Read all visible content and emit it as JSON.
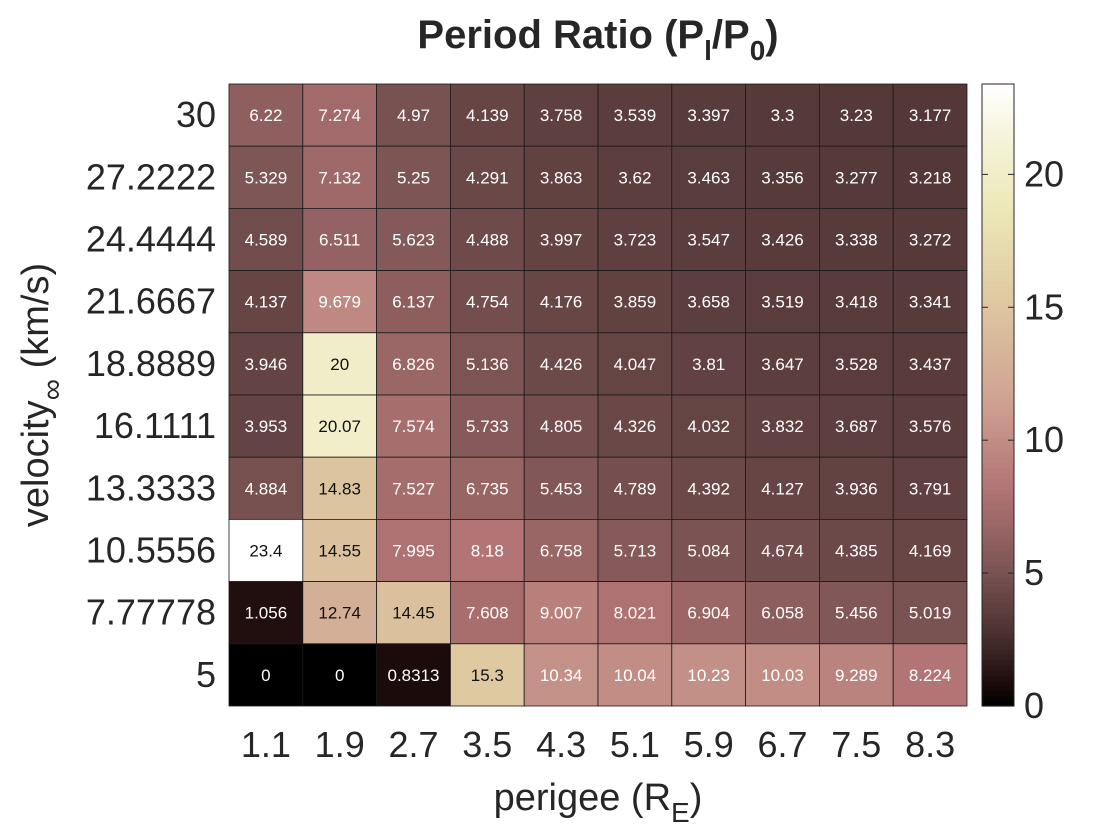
{
  "chart_data": {
    "type": "heatmap",
    "title": {
      "main": "Period Ratio (P",
      "sub1": "l",
      "mid": "/P",
      "sub2": "0",
      "end": ")"
    },
    "xlabel": {
      "main": "perigee (R",
      "sub": "E",
      "end": ")"
    },
    "ylabel": {
      "main": "velocity",
      "sub": "∞",
      "end": " (km/s)"
    },
    "x_ticks": [
      "1.1",
      "1.9",
      "2.7",
      "3.5",
      "4.3",
      "5.1",
      "5.9",
      "6.7",
      "7.5",
      "8.3"
    ],
    "y_ticks_top_to_bottom": [
      "30",
      "27.2222",
      "24.4444",
      "21.6667",
      "18.8889",
      "16.1111",
      "13.3333",
      "10.5556",
      "7.77778",
      "5"
    ],
    "values_top_to_bottom": [
      [
        "6.22",
        "7.274",
        "4.97",
        "4.139",
        "3.758",
        "3.539",
        "3.397",
        "3.3",
        "3.23",
        "3.177"
      ],
      [
        "5.329",
        "7.132",
        "5.25",
        "4.291",
        "3.863",
        "3.62",
        "3.463",
        "3.356",
        "3.277",
        "3.218"
      ],
      [
        "4.589",
        "6.511",
        "5.623",
        "4.488",
        "3.997",
        "3.723",
        "3.547",
        "3.426",
        "3.338",
        "3.272"
      ],
      [
        "4.137",
        "9.679",
        "6.137",
        "4.754",
        "4.176",
        "3.859",
        "3.658",
        "3.519",
        "3.418",
        "3.341"
      ],
      [
        "3.946",
        "20",
        "6.826",
        "5.136",
        "4.426",
        "4.047",
        "3.81",
        "3.647",
        "3.528",
        "3.437"
      ],
      [
        "3.953",
        "20.07",
        "7.574",
        "5.733",
        "4.805",
        "4.326",
        "4.032",
        "3.832",
        "3.687",
        "3.576"
      ],
      [
        "4.884",
        "14.83",
        "7.527",
        "6.735",
        "5.453",
        "4.789",
        "4.392",
        "4.127",
        "3.936",
        "3.791"
      ],
      [
        "23.4",
        "14.55",
        "7.995",
        "8.18",
        "6.758",
        "5.713",
        "5.084",
        "4.674",
        "4.385",
        "4.169"
      ],
      [
        "1.056",
        "12.74",
        "14.45",
        "7.608",
        "9.007",
        "8.021",
        "6.904",
        "6.058",
        "5.456",
        "5.019"
      ],
      [
        "0",
        "0",
        "0.8313",
        "15.3",
        "10.34",
        "10.04",
        "10.23",
        "10.03",
        "9.289",
        "8.224"
      ]
    ],
    "colorbar": {
      "min": 0,
      "max": 23.4,
      "ticks": [
        "0",
        "5",
        "10",
        "15",
        "20"
      ]
    },
    "colormap": "pink",
    "grid": true,
    "legend": "none"
  }
}
